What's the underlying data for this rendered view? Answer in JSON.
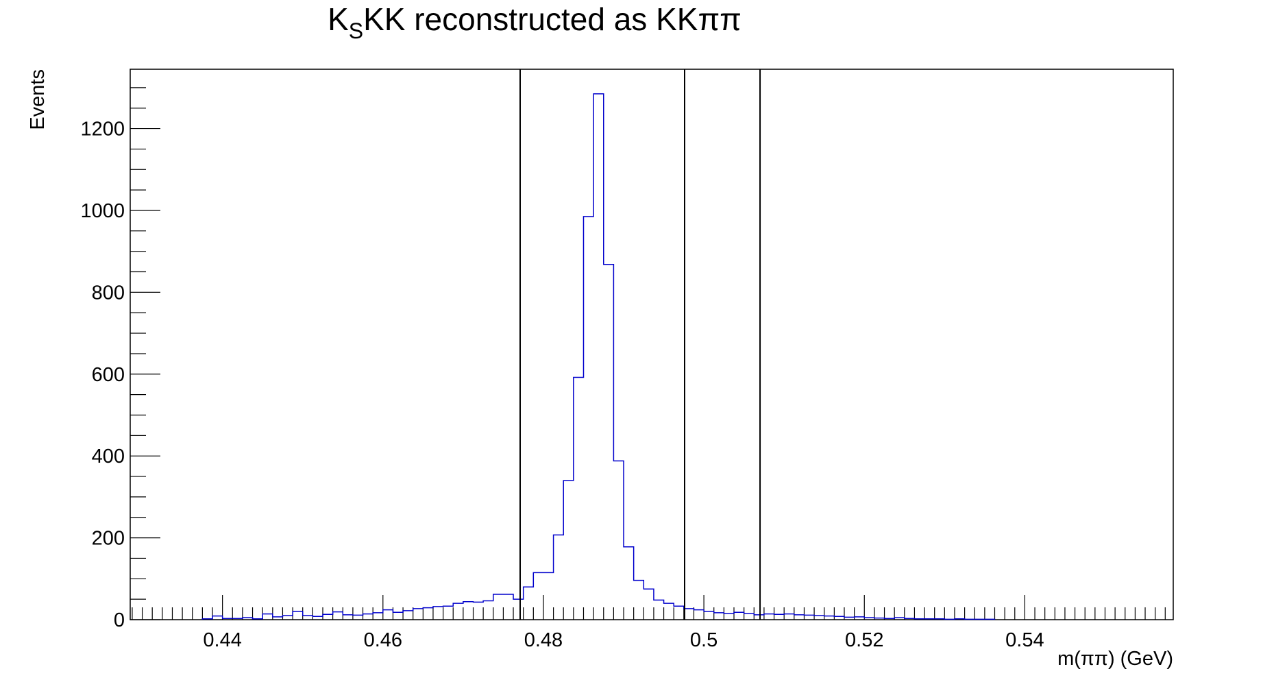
{
  "chart_data": {
    "type": "histogram",
    "title": "K_SKK reconstructed as KKππ",
    "title_main": "K",
    "title_sub": "S",
    "title_rest": "KK reconstructed as KKππ",
    "xlabel": "m(ππ) (GeV)",
    "ylabel": "Events",
    "xlim": [
      0.4285,
      0.5585
    ],
    "ylim": [
      0,
      1345
    ],
    "x_ticks": [
      0.44,
      0.46,
      0.48,
      0.5,
      0.52,
      0.54
    ],
    "x_tick_labels": [
      "0.44",
      "0.46",
      "0.48",
      "0.5",
      "0.52",
      "0.54"
    ],
    "y_ticks": [
      0,
      200,
      400,
      600,
      800,
      1000,
      1200
    ],
    "y_tick_labels": [
      "0",
      "200",
      "400",
      "600",
      "800",
      "1000",
      "1200"
    ],
    "bin_edges_start": 0.4375,
    "bin_width": 0.00125,
    "values": [
      2,
      9,
      3,
      3,
      5,
      2,
      14,
      7,
      10,
      20,
      10,
      8,
      13,
      19,
      12,
      11,
      14,
      17,
      24,
      18,
      22,
      27,
      29,
      32,
      33,
      40,
      44,
      43,
      46,
      62,
      62,
      50,
      80,
      115,
      115,
      207,
      340,
      592,
      985,
      1285,
      868,
      388,
      178,
      96,
      75,
      48,
      40,
      33,
      27,
      24,
      20,
      17,
      15,
      18,
      15,
      12,
      14,
      13,
      14,
      12,
      11,
      10,
      9,
      8,
      6,
      7,
      5,
      4,
      3,
      5,
      3,
      2,
      2,
      2,
      1,
      2,
      1,
      1,
      1
    ],
    "vertical_lines": [
      0.4771,
      0.4976,
      0.507
    ],
    "line_color": "#0000cc",
    "marker_line_color": "#000000",
    "grid": false,
    "legend": "none"
  }
}
